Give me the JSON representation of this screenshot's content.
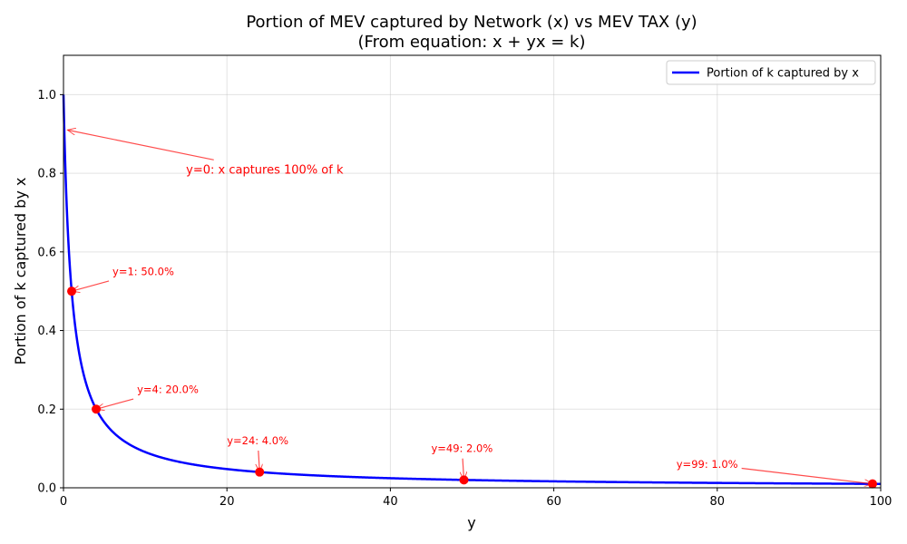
{
  "chart_data": {
    "type": "line",
    "title_line1": "Portion of MEV captured by Network (x) vs MEV TAX (y)",
    "title_line2": "(From equation: x + yx = k)",
    "xlabel": "y",
    "ylabel": "Portion of k captured by x",
    "xlim": [
      0,
      100
    ],
    "ylim": [
      0,
      1.1
    ],
    "x_ticks": [
      0,
      20,
      40,
      60,
      80,
      100
    ],
    "y_ticks": [
      0.0,
      0.2,
      0.4,
      0.6,
      0.8,
      1.0
    ],
    "x_tick_labels": [
      "0",
      "20",
      "40",
      "60",
      "80",
      "100"
    ],
    "y_tick_labels": [
      "0.0",
      "0.2",
      "0.4",
      "0.6",
      "0.8",
      "1.0"
    ],
    "grid": true,
    "legend_position": "top-right",
    "series": [
      {
        "name": "Portion of k captured by x",
        "color": "#0000ff",
        "function": "1/(1+y)",
        "x_range": [
          0,
          100
        ]
      }
    ],
    "highlight_points": [
      {
        "x": 1,
        "y": 0.5
      },
      {
        "x": 4,
        "y": 0.2
      },
      {
        "x": 24,
        "y": 0.04
      },
      {
        "x": 49,
        "y": 0.02
      },
      {
        "x": 99,
        "y": 0.01
      }
    ],
    "highlight_color": "#ff0000",
    "annotations": [
      {
        "text": "y=0: x captures 100% of k",
        "point": [
          0.5,
          0.91
        ],
        "text_at": [
          15,
          0.81
        ],
        "size": "large"
      },
      {
        "text": "y=1: 50.0%",
        "point": [
          1,
          0.5
        ],
        "text_at": [
          6,
          0.55
        ],
        "size": "small"
      },
      {
        "text": "y=4: 20.0%",
        "point": [
          4,
          0.2
        ],
        "text_at": [
          9,
          0.25
        ],
        "size": "small"
      },
      {
        "text": "y=24: 4.0%",
        "point": [
          24,
          0.04
        ],
        "text_at": [
          20,
          0.12
        ],
        "size": "small"
      },
      {
        "text": "y=49: 2.0%",
        "point": [
          49,
          0.02
        ],
        "text_at": [
          45,
          0.1
        ],
        "size": "small"
      },
      {
        "text": "y=99: 1.0%",
        "point": [
          99,
          0.01
        ],
        "text_at": [
          75,
          0.06
        ],
        "size": "small"
      }
    ]
  }
}
